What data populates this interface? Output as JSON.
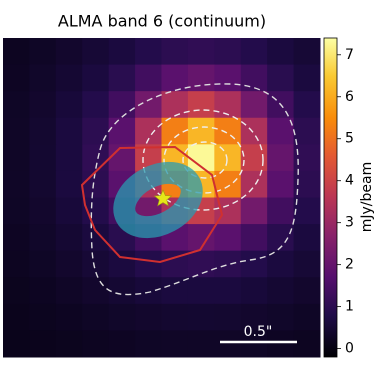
{
  "chart_data": {
    "type": "heatmap",
    "title": "ALMA band 6 (continuum)",
    "colormap": "inferno",
    "colorbar_label": "mJy/beam",
    "clim": [
      -0.2,
      7.4
    ],
    "colorbar_ticks": [
      0,
      1,
      2,
      3,
      4,
      5,
      6,
      7
    ],
    "scalebar_label": "0.5\"",
    "values": [
      [
        0.22,
        0.29,
        0.39,
        0.52,
        0.66,
        0.85,
        1.01,
        1.08,
        1.01,
        0.85,
        0.66,
        0.52
      ],
      [
        0.25,
        0.35,
        0.48,
        0.66,
        0.95,
        1.36,
        1.8,
        2.01,
        1.8,
        1.36,
        0.95,
        0.66
      ],
      [
        0.29,
        0.4,
        0.58,
        0.85,
        1.36,
        2.26,
        3.35,
        3.86,
        3.35,
        2.26,
        1.36,
        0.85
      ],
      [
        0.31,
        0.44,
        0.65,
        1.01,
        1.8,
        3.35,
        5.26,
        6.18,
        5.26,
        3.35,
        1.8,
        1.01
      ],
      [
        0.31,
        0.45,
        0.66,
        1.08,
        2.01,
        3.86,
        6.18,
        7.3,
        6.18,
        3.86,
        2.01,
        1.08
      ],
      [
        0.31,
        0.44,
        0.65,
        1.01,
        1.8,
        3.35,
        5.26,
        6.18,
        5.26,
        3.35,
        1.8,
        1.01
      ],
      [
        0.29,
        0.4,
        0.58,
        0.85,
        1.36,
        2.26,
        3.35,
        3.86,
        3.35,
        2.26,
        1.36,
        0.85
      ],
      [
        0.25,
        0.35,
        0.48,
        0.66,
        0.95,
        1.36,
        1.8,
        2.01,
        1.8,
        1.36,
        0.95,
        0.66
      ],
      [
        0.22,
        0.29,
        0.39,
        0.52,
        0.66,
        0.85,
        1.01,
        1.08,
        1.01,
        0.85,
        0.66,
        0.52
      ],
      [
        0.18,
        0.23,
        0.31,
        0.39,
        0.48,
        0.58,
        0.65,
        0.66,
        0.65,
        0.58,
        0.48,
        0.39
      ],
      [
        0.15,
        0.19,
        0.23,
        0.29,
        0.35,
        0.4,
        0.44,
        0.45,
        0.44,
        0.4,
        0.35,
        0.29
      ],
      [
        0.13,
        0.15,
        0.18,
        0.22,
        0.25,
        0.29,
        0.31,
        0.31,
        0.31,
        0.29,
        0.25,
        0.22
      ]
    ]
  }
}
